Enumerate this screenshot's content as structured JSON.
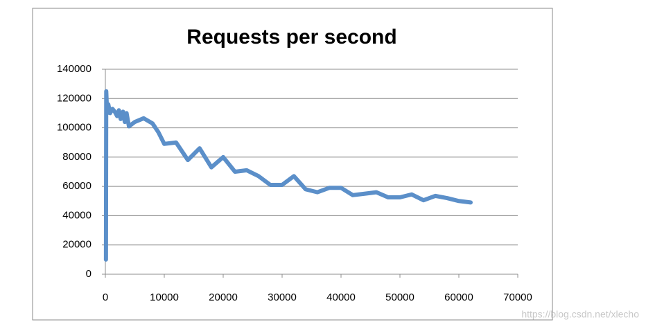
{
  "chart_data": {
    "type": "line",
    "title": "Requests per second",
    "x": [
      100,
      150,
      300,
      500,
      800,
      1200,
      1600,
      2000,
      2300,
      2600,
      3000,
      3300,
      3600,
      4000,
      5000,
      6500,
      8000,
      9000,
      10000,
      12000,
      14000,
      16000,
      18000,
      20000,
      22000,
      24000,
      26000,
      28000,
      30000,
      32000,
      34000,
      36000,
      38000,
      40000,
      42000,
      44000,
      46000,
      48000,
      50000,
      52000,
      54000,
      56000,
      58000,
      60000,
      62000
    ],
    "series": [
      {
        "name": "Requests per second",
        "color": "#5b8fc9",
        "values": [
          10000,
          125000,
          110000,
          116000,
          110000,
          113000,
          111000,
          108000,
          112000,
          106000,
          111000,
          104000,
          110000,
          101000,
          104000,
          106500,
          103000,
          97000,
          89000,
          90000,
          78000,
          86000,
          73000,
          80000,
          70000,
          71000,
          67000,
          61000,
          61000,
          67000,
          58000,
          56000,
          59000,
          59000,
          54000,
          55000,
          56000,
          52500,
          52500,
          54500,
          50500,
          53500,
          52000,
          50000,
          49000
        ]
      }
    ],
    "xlim": [
      0,
      70000
    ],
    "xticks": [
      0,
      10000,
      20000,
      30000,
      40000,
      50000,
      60000,
      70000
    ],
    "ylim": [
      0,
      140000
    ],
    "yticks": [
      0,
      20000,
      40000,
      60000,
      80000,
      100000,
      120000,
      140000
    ],
    "grid": true,
    "watermark": "https://blog.csdn.net/xlecho"
  }
}
